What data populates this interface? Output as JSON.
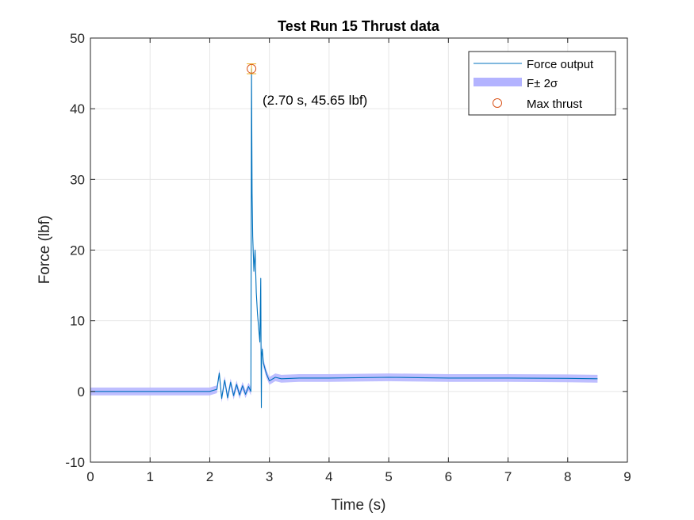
{
  "chart_data": {
    "type": "line",
    "title": "Test Run 15 Thrust data",
    "xlabel": "Time (s)",
    "ylabel": "Force (lbf)",
    "xlim": [
      0,
      9
    ],
    "ylim": [
      -10,
      50
    ],
    "xticks": [
      0,
      1,
      2,
      3,
      4,
      5,
      6,
      7,
      8,
      9
    ],
    "yticks": [
      -10,
      0,
      10,
      20,
      30,
      40,
      50
    ],
    "grid": true,
    "legend_position": "top-right",
    "legend": [
      {
        "label": "Force output",
        "kind": "line"
      },
      {
        "label": "F± 2σ",
        "kind": "band"
      },
      {
        "label": "Max thrust",
        "kind": "marker"
      }
    ],
    "annotation": {
      "text": "(2.70 s, 45.65 lbf)",
      "x": 2.7,
      "y": 45.65
    },
    "max_point": {
      "x": 2.7,
      "y": 45.65,
      "err": 0.7
    },
    "band_halfwidth": 0.55,
    "series": [
      {
        "name": "Force output",
        "x": [
          0.0,
          1.0,
          2.0,
          2.12,
          2.16,
          2.2,
          2.25,
          2.3,
          2.35,
          2.4,
          2.45,
          2.5,
          2.55,
          2.6,
          2.65,
          2.69,
          2.7,
          2.71,
          2.72,
          2.74,
          2.76,
          2.78,
          2.8,
          2.82,
          2.84,
          2.855,
          2.86,
          2.865,
          2.87,
          2.88,
          2.9,
          2.95,
          3.0,
          3.1,
          3.2,
          3.5,
          4.0,
          5.0,
          6.0,
          7.0,
          8.0,
          8.5
        ],
        "y": [
          0.0,
          0.0,
          0.0,
          0.3,
          2.6,
          -1.0,
          1.6,
          -0.9,
          1.3,
          -0.6,
          1.0,
          -0.5,
          0.8,
          -0.4,
          0.7,
          0.0,
          45.65,
          28.0,
          22.0,
          17.0,
          20.0,
          14.0,
          11.0,
          9.0,
          7.0,
          16.0,
          6.0,
          -2.3,
          5.0,
          6.0,
          4.0,
          2.5,
          1.5,
          2.0,
          1.8,
          1.9,
          1.9,
          2.0,
          1.9,
          1.9,
          1.85,
          1.8
        ]
      }
    ]
  }
}
